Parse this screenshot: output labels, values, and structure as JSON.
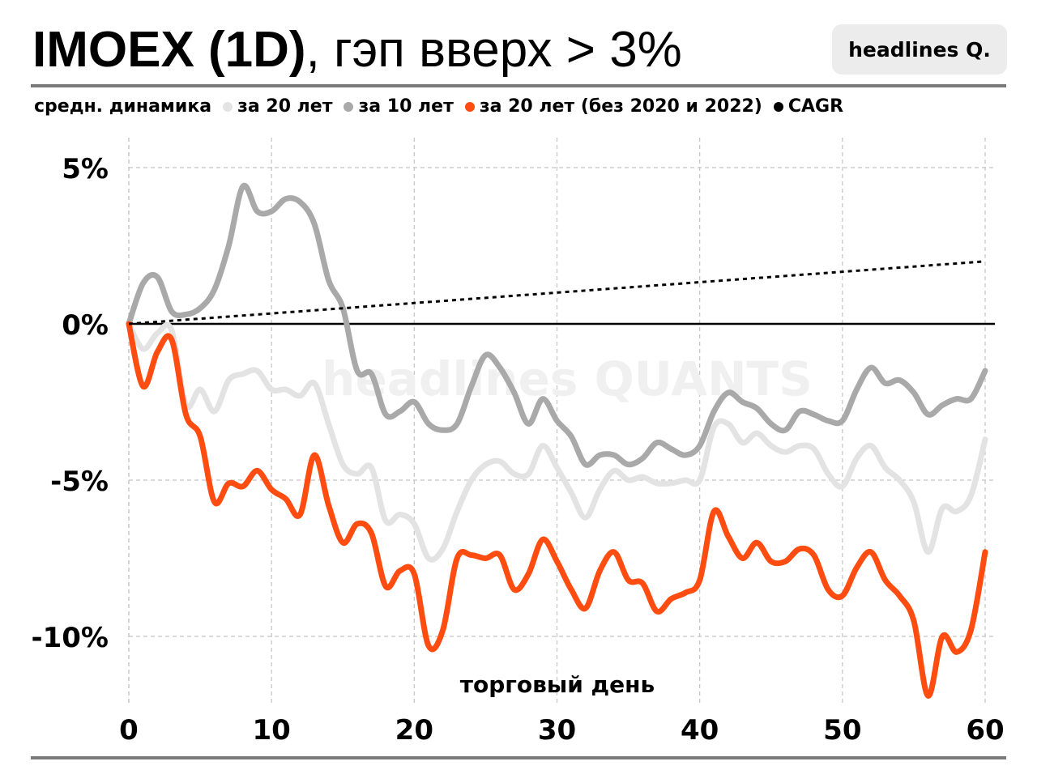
{
  "header": {
    "title_bold": "IMOEX (1D)",
    "title_rest": ", гэп вверх > 3%",
    "brand": "headlines Q.",
    "watermark": "headlines QUANTS"
  },
  "legend": {
    "prefix": "средн. динамика",
    "items": [
      {
        "label": "за 20 лет",
        "color": "#e3e3e3"
      },
      {
        "label": "за 10 лет",
        "color": "#a9a9a9"
      },
      {
        "label": "за 20 лет (без 2020 и 2022)",
        "color": "#ff4d12"
      },
      {
        "label": "CAGR",
        "color": "#000000"
      }
    ]
  },
  "chart_data": {
    "type": "line",
    "xlabel": "торговый день",
    "ylabel": "",
    "xlim": [
      0,
      60
    ],
    "ylim": [
      -12,
      6
    ],
    "x_ticks": [
      0,
      10,
      20,
      30,
      40,
      50,
      60
    ],
    "y_ticks": [
      5,
      0,
      -5,
      -10
    ],
    "y_tick_labels": [
      "5%",
      "0%",
      "-5%",
      "-10%"
    ],
    "grid": true,
    "series": [
      {
        "name": "за 20 лет",
        "color": "#e3e3e3",
        "values": [
          0,
          -0.8,
          -0.3,
          -0.2,
          -2.6,
          -2.1,
          -2.8,
          -1.8,
          -1.6,
          -1.5,
          -2.1,
          -2.1,
          -2.3,
          -1.9,
          -3.2,
          -4.5,
          -4.8,
          -4.6,
          -6.3,
          -6.1,
          -6.4,
          -7.5,
          -7.2,
          -6.0,
          -5.0,
          -4.5,
          -4.4,
          -4.8,
          -4.8,
          -3.9,
          -4.6,
          -5.4,
          -6.2,
          -5.3,
          -4.7,
          -5.0,
          -4.9,
          -5.1,
          -5.1,
          -5.0,
          -5.0,
          -3.3,
          -3.2,
          -3.8,
          -3.5,
          -3.9,
          -4.1,
          -3.9,
          -4.0,
          -4.8,
          -5.2,
          -4.3,
          -3.9,
          -4.6,
          -5.0,
          -5.7,
          -7.3,
          -5.9,
          -6.0,
          -5.5,
          -3.7
        ]
      },
      {
        "name": "за 10 лет",
        "color": "#a9a9a9",
        "values": [
          0,
          1.3,
          1.5,
          0.4,
          0.3,
          0.5,
          1.1,
          2.5,
          4.4,
          3.6,
          3.6,
          4.0,
          3.9,
          3.2,
          1.4,
          0.5,
          -1.5,
          -1.6,
          -2.9,
          -2.8,
          -2.5,
          -3.2,
          -3.4,
          -3.2,
          -2.0,
          -1.0,
          -1.4,
          -2.2,
          -3.2,
          -2.4,
          -3.1,
          -3.6,
          -4.5,
          -4.2,
          -4.2,
          -4.5,
          -4.3,
          -3.8,
          -4.0,
          -4.2,
          -3.9,
          -2.8,
          -2.2,
          -2.5,
          -2.7,
          -3.2,
          -3.4,
          -2.8,
          -2.9,
          -3.1,
          -3.1,
          -2.1,
          -1.4,
          -1.9,
          -1.8,
          -2.2,
          -2.9,
          -2.6,
          -2.4,
          -2.4,
          -1.5
        ]
      },
      {
        "name": "за 20 лет (без 2020 и 2022)",
        "color": "#ff4d12",
        "values": [
          0,
          -2.0,
          -0.9,
          -0.5,
          -2.9,
          -3.6,
          -5.7,
          -5.1,
          -5.2,
          -4.7,
          -5.3,
          -5.6,
          -6.1,
          -4.2,
          -5.8,
          -7.0,
          -6.4,
          -6.7,
          -8.4,
          -7.9,
          -8.0,
          -10.3,
          -9.8,
          -7.5,
          -7.4,
          -7.5,
          -7.4,
          -8.5,
          -8.0,
          -6.9,
          -7.6,
          -8.5,
          -9.1,
          -7.9,
          -7.3,
          -8.2,
          -8.3,
          -9.2,
          -8.8,
          -8.6,
          -8.2,
          -6.0,
          -6.8,
          -7.5,
          -7.0,
          -7.6,
          -7.6,
          -7.2,
          -7.4,
          -8.5,
          -8.7,
          -7.8,
          -7.3,
          -8.2,
          -8.7,
          -9.5,
          -11.9,
          -10.0,
          -10.5,
          -9.8,
          -7.3
        ]
      },
      {
        "name": "CAGR",
        "color": "#000000",
        "values": [
          0,
          2.0
        ],
        "x": [
          0,
          60
        ],
        "style": "dotted"
      }
    ]
  }
}
